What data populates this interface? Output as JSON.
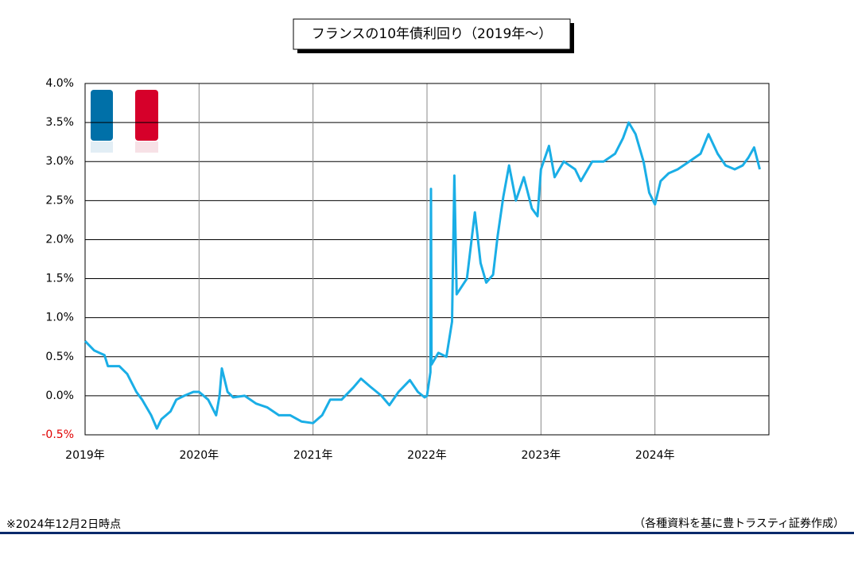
{
  "chart_data": {
    "type": "line",
    "title": "フランスの10年債利回り（2019年～）",
    "note": "※2024年12月2日時点",
    "source": "（各種資料を基に豊トラスティ証券作成）",
    "x": [
      2019.0,
      2019.08,
      2019.17,
      2019.2,
      2019.3,
      2019.37,
      2019.45,
      2019.5,
      2019.58,
      2019.63,
      2019.67,
      2019.75,
      2019.8,
      2019.87,
      2019.95,
      2020.0,
      2020.08,
      2020.15,
      2020.18,
      2020.2,
      2020.25,
      2020.3,
      2020.4,
      2020.5,
      2020.6,
      2020.7,
      2020.8,
      2020.9,
      2021.0,
      2021.08,
      2021.15,
      2021.25,
      2021.35,
      2021.42,
      2021.5,
      2021.6,
      2021.67,
      2021.75,
      2021.85,
      2021.92,
      2021.98,
      2022.0,
      2022.03,
      2022.035,
      2022.04,
      2022.1,
      2022.17,
      2022.22,
      2022.24,
      2022.26,
      2022.35,
      2022.42,
      2022.47,
      2022.52,
      2022.58,
      2022.62,
      2022.67,
      2022.72,
      2022.78,
      2022.85,
      2022.92,
      2022.97,
      2023.0,
      2023.07,
      2023.12,
      2023.2,
      2023.3,
      2023.35,
      2023.45,
      2023.55,
      2023.65,
      2023.72,
      2023.77,
      2023.83,
      2023.9,
      2023.95,
      2024.0,
      2024.05,
      2024.12,
      2024.2,
      2024.3,
      2024.4,
      2024.47,
      2024.55,
      2024.62,
      2024.7,
      2024.77,
      2024.82,
      2024.87,
      2024.92
    ],
    "series": [
      {
        "name": "フランス10年債利回り",
        "color": "#1aaee6",
        "values": [
          0.7,
          0.58,
          0.52,
          0.38,
          0.38,
          0.28,
          0.05,
          -0.05,
          -0.25,
          -0.42,
          -0.3,
          -0.2,
          -0.05,
          0.0,
          0.05,
          0.05,
          -0.05,
          -0.25,
          0.0,
          0.35,
          0.05,
          -0.02,
          0.0,
          -0.1,
          -0.15,
          -0.25,
          -0.25,
          -0.33,
          -0.35,
          -0.25,
          -0.05,
          -0.05,
          0.1,
          0.22,
          0.12,
          0.0,
          -0.12,
          0.05,
          0.2,
          0.05,
          -0.02,
          0.0,
          0.3,
          2.65,
          0.4,
          0.55,
          0.5,
          0.95,
          2.82,
          1.3,
          1.5,
          2.35,
          1.7,
          1.45,
          1.55,
          2.05,
          2.55,
          2.95,
          2.5,
          2.8,
          2.4,
          2.3,
          2.9,
          3.2,
          2.8,
          3.0,
          2.9,
          2.75,
          3.0,
          3.0,
          3.1,
          3.3,
          3.5,
          3.35,
          3.0,
          2.6,
          2.45,
          2.75,
          2.85,
          2.9,
          3.0,
          3.1,
          3.35,
          3.1,
          2.95,
          2.9,
          2.95,
          3.05,
          3.18,
          2.9
        ]
      }
    ],
    "xlim": [
      2019,
      2025
    ],
    "xticks": [
      {
        "value": 2019,
        "label": "2019年"
      },
      {
        "value": 2020,
        "label": "2020年"
      },
      {
        "value": 2021,
        "label": "2021年"
      },
      {
        "value": 2022,
        "label": "2022年"
      },
      {
        "value": 2023,
        "label": "2023年"
      },
      {
        "value": 2024,
        "label": "2024年"
      }
    ],
    "ylim": [
      -0.5,
      4
    ],
    "yticks": [
      {
        "value": -0.5,
        "label": "-0.5%"
      },
      {
        "value": 0,
        "label": "0.0%"
      },
      {
        "value": 0.5,
        "label": "0.5%"
      },
      {
        "value": 1,
        "label": "1.0%"
      },
      {
        "value": 1.5,
        "label": "1.5%"
      },
      {
        "value": 2,
        "label": "2.0%"
      },
      {
        "value": 2.5,
        "label": "2.5%"
      },
      {
        "value": 3,
        "label": "3.0%"
      },
      {
        "value": 3.5,
        "label": "3.5%"
      },
      {
        "value": 4,
        "label": "4.0%"
      }
    ],
    "negative_tick_color": "#e00000",
    "grid": true
  }
}
